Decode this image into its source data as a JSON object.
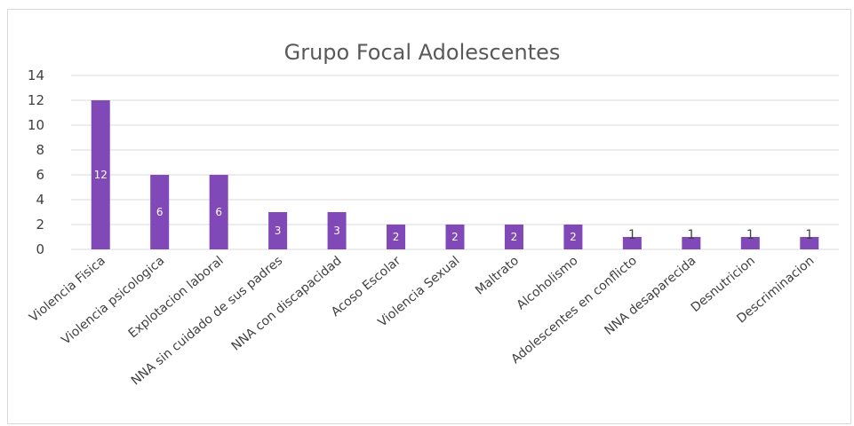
{
  "chart_data": {
    "type": "bar",
    "title": "Grupo Focal Adolescentes",
    "categories": [
      "Violencia Fisica",
      "Violencia psicologica",
      "Explotacion laboral",
      "NNA sin cuidado de sus padres",
      "NNA con discapacidad",
      "Acoso Escolar",
      "Violencia Sexual",
      "Maltrato",
      "Alcoholismo",
      "Adolescentes en conflicto",
      "NNA desaparecida",
      "Desnutricion",
      "Descriminacion"
    ],
    "values": [
      12,
      6,
      6,
      3,
      3,
      2,
      2,
      2,
      2,
      1,
      1,
      1,
      1
    ],
    "data_labels": [
      "12",
      "6",
      "6",
      "3",
      "3",
      "2",
      "2",
      "2",
      "2",
      "1",
      "1",
      "1",
      "1"
    ],
    "yticks": [
      "0",
      "2",
      "4",
      "6",
      "8",
      "10",
      "12",
      "14"
    ],
    "ylim": [
      0,
      14
    ],
    "xlabel": "",
    "ylabel": "",
    "grid": true,
    "legend": "none",
    "bar_color": "#8148b8"
  }
}
